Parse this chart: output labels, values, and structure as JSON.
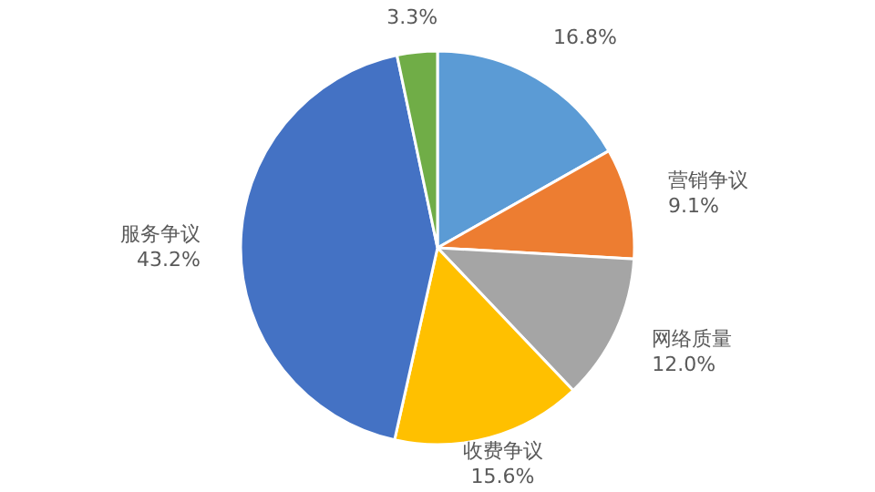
{
  "chart_data": {
    "type": "pie",
    "categories": [
      null,
      "营销争议",
      "网络质量",
      "收费争议",
      "服务争议",
      null
    ],
    "values": [
      16.8,
      9.1,
      12.0,
      15.6,
      43.2,
      3.3
    ],
    "value_labels": [
      "16.8%",
      "9.1%",
      "12.0%",
      "15.6%",
      "43.2%",
      "3.3%"
    ],
    "colors": [
      "#5b9bd5",
      "#ed7d31",
      "#a5a5a5",
      "#ffc000",
      "#4472c4",
      "#70ad47"
    ],
    "legend": false
  }
}
